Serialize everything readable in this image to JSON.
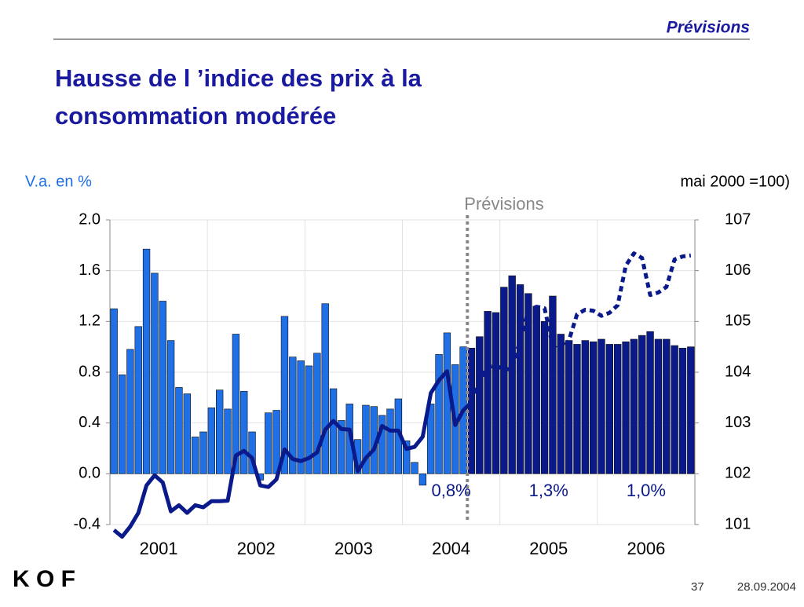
{
  "header": {
    "section": "Prévisions",
    "title_lines": [
      "Hausse de l ’indice des prix à la",
      "consommation modérée"
    ]
  },
  "chart_data": {
    "type": "bar_line",
    "y_axis_label": "V.a. en %",
    "y2_axis_label": "mai 2000 =100)",
    "categories": [
      null,
      null,
      null,
      null,
      null,
      null,
      "2001",
      null,
      null,
      null,
      null,
      null,
      null,
      null,
      null,
      null,
      null,
      null,
      "2002",
      null,
      null,
      null,
      null,
      null,
      null,
      null,
      null,
      null,
      null,
      null,
      "2003",
      null,
      null,
      null,
      null,
      null,
      null,
      null,
      null,
      null,
      null,
      null,
      "2004",
      null,
      null,
      null,
      null,
      null,
      null,
      null,
      null,
      null,
      null,
      null,
      "2005",
      null,
      null,
      null,
      null,
      null,
      null,
      null,
      null,
      null,
      null,
      null,
      "2006",
      null,
      null,
      null,
      null,
      null
    ],
    "series": [
      {
        "kind": "bar",
        "color": "#1f6fe6",
        "forecast_color": "#0b1a8a",
        "values": [
          1.3,
          0.78,
          0.98,
          1.16,
          1.77,
          1.58,
          1.36,
          1.05,
          0.68,
          0.63,
          0.29,
          0.33,
          0.52,
          0.66,
          0.51,
          1.1,
          0.65,
          0.33,
          -0.05,
          0.48,
          0.5,
          1.24,
          0.92,
          0.89,
          0.85,
          0.95,
          1.34,
          0.67,
          0.42,
          0.55,
          0.27,
          0.54,
          0.53,
          0.46,
          0.51,
          0.59,
          0.26,
          0.09,
          -0.09,
          0.55,
          0.94,
          1.11,
          0.86,
          1.0,
          0.99,
          1.08,
          1.28,
          1.27,
          1.47,
          1.56,
          1.49,
          1.42,
          1.32,
          1.2,
          1.4,
          1.1,
          1.05,
          1.02,
          1.05,
          1.04,
          1.06,
          1.02,
          1.02,
          1.04,
          1.06,
          1.09,
          1.12,
          1.06,
          1.06,
          1.01,
          0.99,
          1.0
        ]
      },
      {
        "kind": "line",
        "axis": "y2",
        "color": "#0b1a8a",
        "values": [
          100.89,
          100.76,
          100.96,
          101.23,
          101.77,
          101.97,
          101.83,
          101.26,
          101.38,
          101.23,
          101.38,
          101.34,
          101.46,
          101.46,
          101.47,
          102.36,
          102.45,
          102.31,
          101.77,
          101.74,
          101.89,
          102.48,
          102.29,
          102.25,
          102.31,
          102.42,
          102.87,
          103.04,
          102.88,
          102.87,
          102.05,
          102.31,
          102.48,
          102.94,
          102.85,
          102.85,
          102.49,
          102.53,
          102.73,
          103.59,
          103.84,
          104.02,
          102.96,
          103.25,
          103.41,
          103.82,
          104.1,
          104.13,
          104.06,
          104.06,
          104.64,
          105.21,
          105.29,
          105.26,
          104.52,
          104.41,
          104.63,
          105.14,
          105.23,
          105.21,
          105.11,
          105.17,
          105.32,
          106.1,
          106.34,
          106.25,
          105.52,
          105.57,
          105.68,
          106.22,
          106.28,
          106.3
        ]
      }
    ],
    "forecast": {
      "label": "Prévisions",
      "from_index": 44
    },
    "annotations": [
      "0,8%",
      "1,3%",
      "1,0%"
    ],
    "ylim": [
      -0.4,
      2.0
    ],
    "yticks": [
      {
        "value": -0.4,
        "label": "-0.4"
      },
      {
        "value": 0,
        "label": "0.0"
      },
      0.4,
      0.8,
      1.2,
      1.6,
      {
        "value": 2,
        "label": "2.0"
      }
    ],
    "y2lim": [
      101,
      107
    ],
    "y2ticks": [
      101,
      102,
      103,
      104,
      105,
      106,
      107
    ],
    "grid": true
  },
  "footer": {
    "logo": "K O F",
    "page": "37",
    "date": "28.09.2004"
  }
}
